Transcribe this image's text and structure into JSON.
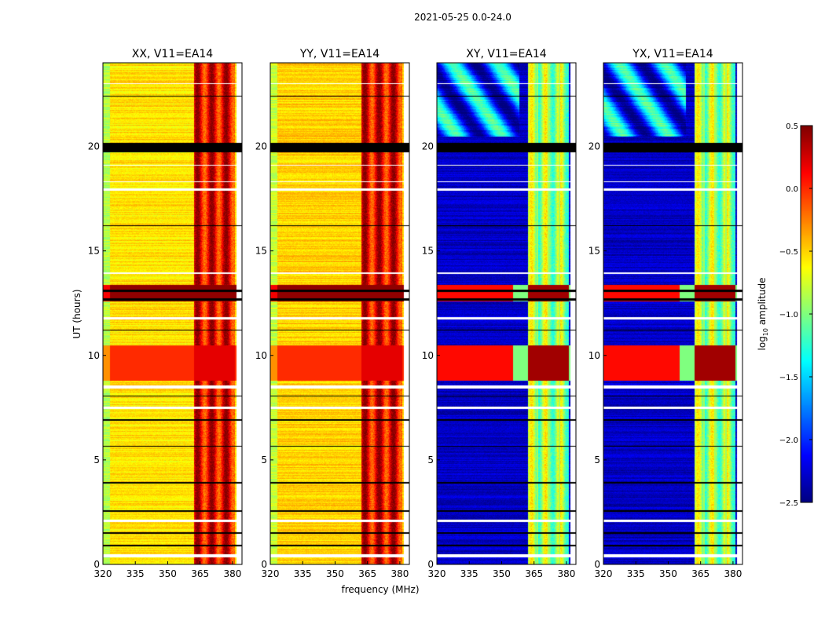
{
  "chart_data": {
    "type": "heatmap",
    "suptitle": "2021-05-25 0.0-24.0",
    "xlabel": "frequency (MHz)",
    "ylabel": "UT (hours)",
    "xlim": [
      320,
      384.4
    ],
    "ylim": [
      0,
      24
    ],
    "xticks": [
      320,
      335,
      350,
      365,
      380
    ],
    "yticks": [
      0,
      5,
      10,
      15,
      20
    ],
    "colorbar": {
      "label": "log10 amplitude",
      "label_main": "log",
      "label_sub": "10",
      "label_rest": " amplitude",
      "range": [
        -2.5,
        0.5
      ],
      "ticks": [
        "0.5",
        "0.0",
        "−0.5",
        "−1.0",
        "−1.5",
        "−2.0",
        "−2.5"
      ],
      "tick_values": [
        0.5,
        0,
        -0.5,
        -1,
        -1.5,
        -2,
        -2.5
      ],
      "colormap": "jet"
    },
    "panels": [
      {
        "title": "XX, V11=EA14",
        "base": -0.55,
        "band": 0.15,
        "band_range": [
          362,
          381
        ]
      },
      {
        "title": "YY, V11=EA14",
        "base": -0.5,
        "band": 0.15,
        "band_range": [
          362,
          381
        ]
      },
      {
        "title": "XY, V11=EA14",
        "base": -2.3,
        "band": -0.9,
        "band_range": [
          362,
          381
        ]
      },
      {
        "title": "YX, V11=EA14",
        "base": -2.3,
        "band": -0.9,
        "band_range": [
          362,
          381
        ]
      }
    ],
    "flagged_black_hours": [
      [
        19.75,
        20.2
      ],
      [
        12.65,
        12.75
      ],
      [
        13.05,
        13.15
      ],
      [
        0.9,
        0.95
      ],
      [
        1.5,
        1.55
      ],
      [
        2.55,
        2.6
      ],
      [
        3.9,
        3.95
      ],
      [
        5.65,
        5.7
      ],
      [
        6.9,
        6.95
      ],
      [
        8.05,
        8.1
      ],
      [
        11.2,
        11.25
      ],
      [
        16.2,
        16.25
      ],
      [
        22.4,
        22.45
      ]
    ],
    "flagged_white_hours": [
      [
        0.35,
        0.5
      ],
      [
        2.05,
        2.15
      ],
      [
        7.45,
        7.55
      ],
      [
        8.45,
        8.6
      ],
      [
        11.75,
        11.85
      ],
      [
        13.9,
        14.0
      ],
      [
        17.9,
        18.0
      ],
      [
        18.3,
        18.35
      ],
      [
        19.1,
        19.15
      ],
      [
        23.0,
        23.05
      ]
    ],
    "high_hours": [
      [
        12.6,
        13.4
      ],
      [
        8.8,
        10.5
      ]
    ]
  }
}
